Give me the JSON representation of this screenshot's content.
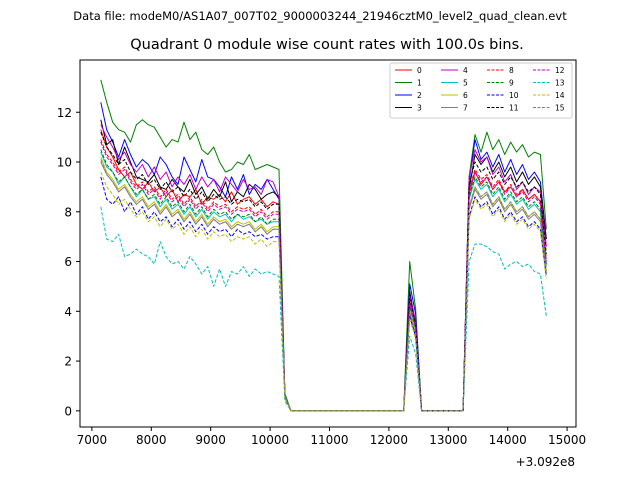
{
  "suptitle": "Data file: modeM0/AS1A07_007T02_9000003244_21946cztM0_level2_quad_clean.evt",
  "chart_data": {
    "type": "line",
    "title": "Quadrant 0 module wise count rates with 100.0s bins.",
    "xlabel": "",
    "ylabel": "",
    "x_offset_label": "+3.092e8",
    "xlim": [
      6800,
      15150
    ],
    "ylim": [
      -0.65,
      14.1
    ],
    "x_ticks": [
      7000,
      8000,
      9000,
      10000,
      11000,
      12000,
      13000,
      14000,
      15000
    ],
    "x_tick_labels": [
      "7000",
      "8000",
      "9000",
      "10000",
      "11000",
      "12000",
      "13000",
      "14000",
      "15000"
    ],
    "y_ticks": [
      0,
      2,
      4,
      6,
      8,
      10,
      12
    ],
    "y_tick_labels": [
      "0",
      "2",
      "4",
      "6",
      "8",
      "10",
      "12"
    ],
    "legend_position": "top-right",
    "x": [
      7150,
      7250,
      7350,
      7450,
      7550,
      7650,
      7750,
      7850,
      7950,
      8050,
      8150,
      8250,
      8350,
      8450,
      8550,
      8650,
      8750,
      8850,
      8950,
      9050,
      9150,
      9250,
      9350,
      9450,
      9550,
      9650,
      9750,
      9850,
      9950,
      10050,
      10150,
      10250,
      10350,
      10450,
      12250,
      12350,
      12450,
      12550,
      13250,
      13350,
      13450,
      13550,
      13650,
      13750,
      13850,
      13950,
      14050,
      14150,
      14250,
      14350,
      14450,
      14550,
      14650
    ],
    "series": [
      {
        "name": "0",
        "color": "#ff0000",
        "dash": "solid",
        "values": [
          11.3,
          10.6,
          10.2,
          9.7,
          9.4,
          9.6,
          9.1,
          8.9,
          9.2,
          8.8,
          9.0,
          8.6,
          8.9,
          8.4,
          8.7,
          8.6,
          8.9,
          8.3,
          8.6,
          8.5,
          8.7,
          8.4,
          8.8,
          8.3,
          8.5,
          8.6,
          8.3,
          8.5,
          8.2,
          8.4,
          8.3,
          0.6,
          0.0,
          0.0,
          0.0,
          4.6,
          3.6,
          0.0,
          0.0,
          8.7,
          9.6,
          9.1,
          9.4,
          8.9,
          9.2,
          8.8,
          9.0,
          8.6,
          8.9,
          8.5,
          8.7,
          8.4,
          6.6
        ]
      },
      {
        "name": "1",
        "color": "#008000",
        "dash": "solid",
        "values": [
          13.3,
          12.4,
          11.6,
          11.3,
          11.2,
          10.8,
          11.5,
          11.7,
          11.5,
          11.4,
          11.0,
          10.6,
          10.9,
          10.8,
          11.6,
          10.9,
          11.2,
          10.5,
          10.3,
          10.6,
          10.0,
          9.6,
          9.7,
          10.0,
          9.9,
          10.3,
          9.7,
          9.8,
          9.9,
          9.8,
          9.7,
          0.7,
          0.0,
          0.0,
          0.0,
          6.0,
          4.1,
          0.0,
          0.0,
          9.4,
          11.1,
          10.4,
          11.2,
          10.5,
          10.9,
          10.3,
          10.8,
          10.4,
          10.7,
          10.2,
          10.4,
          10.3,
          7.3
        ]
      },
      {
        "name": "2",
        "color": "#0000ff",
        "dash": "solid",
        "values": [
          12.4,
          11.3,
          10.8,
          10.2,
          10.9,
          10.3,
          9.8,
          10.1,
          9.9,
          9.5,
          10.2,
          9.9,
          9.4,
          9.1,
          10.2,
          9.7,
          9.2,
          10.1,
          9.4,
          9.3,
          9.0,
          8.6,
          9.4,
          8.9,
          9.5,
          8.7,
          9.1,
          8.9,
          9.3,
          8.9,
          8.5,
          0.6,
          0.0,
          0.0,
          0.0,
          5.1,
          3.9,
          0.0,
          0.0,
          9.2,
          10.9,
          10.1,
          10.4,
          9.8,
          10.3,
          9.6,
          10.1,
          9.5,
          9.9,
          9.3,
          9.6,
          9.2,
          6.9
        ]
      },
      {
        "name": "3",
        "color": "#000000",
        "dash": "solid",
        "values": [
          11.7,
          10.7,
          10.9,
          9.9,
          10.6,
          10.0,
          9.4,
          9.3,
          9.2,
          9.5,
          9.0,
          8.9,
          9.3,
          9.0,
          8.8,
          9.3,
          8.7,
          9.0,
          8.5,
          8.9,
          8.6,
          9.2,
          8.4,
          8.8,
          8.6,
          9.1,
          8.9,
          8.5,
          8.7,
          8.8,
          8.6,
          0.6,
          0.0,
          0.0,
          0.0,
          4.8,
          3.5,
          0.0,
          0.0,
          8.9,
          10.3,
          9.9,
          10.2,
          9.6,
          10.0,
          9.4,
          9.8,
          9.2,
          9.6,
          9.1,
          9.4,
          9.0,
          6.9
        ]
      },
      {
        "name": "4",
        "color": "#bf00bf",
        "dash": "solid",
        "values": [
          11.5,
          11.0,
          10.6,
          10.1,
          10.4,
          9.9,
          9.6,
          9.9,
          9.4,
          9.8,
          9.3,
          9.6,
          9.0,
          9.4,
          9.1,
          9.5,
          8.9,
          9.4,
          9.0,
          9.3,
          8.8,
          9.4,
          9.1,
          8.8,
          9.3,
          8.9,
          9.0,
          8.7,
          9.3,
          9.2,
          8.6,
          0.6,
          0.0,
          0.0,
          0.0,
          4.6,
          3.6,
          0.0,
          0.0,
          9.4,
          10.5,
          10.0,
          10.2,
          9.5,
          9.8,
          9.2,
          9.5,
          8.9,
          9.2,
          8.7,
          9.0,
          8.8,
          6.6
        ]
      },
      {
        "name": "5",
        "color": "#00bfbf",
        "dash": "solid",
        "values": [
          10.4,
          9.8,
          9.6,
          9.1,
          9.4,
          9.0,
          8.6,
          8.9,
          8.5,
          8.6,
          8.2,
          8.5,
          8.1,
          8.3,
          7.9,
          8.2,
          7.8,
          8.1,
          7.7,
          8.0,
          7.8,
          7.9,
          7.6,
          7.9,
          7.7,
          7.8,
          7.6,
          7.7,
          7.5,
          7.6,
          7.6,
          0.6,
          0.0,
          0.0,
          0.0,
          4.2,
          3.3,
          0.0,
          0.0,
          8.5,
          9.3,
          8.9,
          9.1,
          8.6,
          8.9,
          8.4,
          8.7,
          8.3,
          8.5,
          8.1,
          8.3,
          8.0,
          5.8
        ]
      },
      {
        "name": "6",
        "color": "#bfbf00",
        "dash": "solid",
        "values": [
          10.2,
          9.6,
          9.3,
          8.9,
          9.1,
          8.7,
          8.4,
          8.6,
          8.2,
          8.4,
          8.0,
          8.3,
          7.9,
          8.1,
          7.7,
          8.0,
          7.6,
          7.9,
          7.5,
          7.8,
          7.6,
          7.7,
          7.4,
          7.6,
          7.5,
          7.6,
          7.3,
          7.5,
          7.2,
          7.4,
          7.4,
          0.6,
          0.0,
          0.0,
          0.0,
          4.0,
          3.1,
          0.0,
          0.0,
          8.2,
          9.0,
          8.6,
          8.8,
          8.3,
          8.6,
          8.1,
          8.4,
          8.0,
          8.2,
          7.8,
          8.0,
          7.7,
          5.6
        ]
      },
      {
        "name": "7",
        "color": "#808080",
        "dash": "solid",
        "values": [
          10.0,
          9.5,
          9.2,
          8.8,
          9.0,
          8.6,
          8.3,
          8.5,
          8.1,
          8.3,
          7.9,
          8.2,
          7.8,
          8.0,
          7.6,
          7.9,
          7.5,
          7.8,
          7.4,
          7.7,
          7.5,
          7.6,
          7.3,
          7.5,
          7.4,
          7.5,
          7.2,
          7.4,
          7.1,
          7.3,
          7.3,
          0.6,
          0.0,
          0.0,
          0.0,
          3.9,
          3.0,
          0.0,
          0.0,
          8.1,
          8.9,
          8.5,
          8.7,
          8.2,
          8.5,
          8.0,
          8.3,
          7.9,
          8.1,
          7.7,
          7.9,
          7.6,
          5.5
        ]
      },
      {
        "name": "8",
        "color": "#ff0000",
        "dash": "dashed",
        "values": [
          10.9,
          10.3,
          10.0,
          9.6,
          9.8,
          9.3,
          9.0,
          9.2,
          8.8,
          9.0,
          8.6,
          8.9,
          8.5,
          8.7,
          8.3,
          8.6,
          8.2,
          8.5,
          8.1,
          8.4,
          8.2,
          8.3,
          8.0,
          8.2,
          8.1,
          8.2,
          7.9,
          8.1,
          7.8,
          8.0,
          8.0,
          0.6,
          0.0,
          0.0,
          0.0,
          4.4,
          3.4,
          0.0,
          0.0,
          8.9,
          9.7,
          9.3,
          9.5,
          9.0,
          9.3,
          8.8,
          9.1,
          8.7,
          8.9,
          8.5,
          8.7,
          8.4,
          6.1
        ]
      },
      {
        "name": "9",
        "color": "#008000",
        "dash": "dashed",
        "values": [
          10.5,
          9.9,
          9.6,
          9.2,
          9.4,
          9.0,
          8.7,
          8.9,
          8.5,
          8.7,
          8.3,
          8.6,
          8.2,
          8.4,
          8.0,
          8.3,
          7.9,
          8.2,
          7.8,
          8.1,
          7.9,
          8.0,
          7.7,
          7.9,
          7.8,
          7.9,
          7.6,
          7.8,
          7.5,
          7.7,
          7.7,
          0.6,
          0.0,
          0.0,
          0.0,
          4.2,
          3.3,
          0.0,
          0.0,
          8.6,
          9.4,
          9.0,
          9.2,
          8.7,
          9.0,
          8.5,
          8.8,
          8.4,
          8.6,
          8.2,
          8.4,
          8.1,
          5.9
        ]
      },
      {
        "name": "10",
        "color": "#0000ff",
        "dash": "dashed",
        "values": [
          9.4,
          8.5,
          8.3,
          8.6,
          8.0,
          8.4,
          7.9,
          8.2,
          7.7,
          8.0,
          7.6,
          7.8,
          7.4,
          7.7,
          7.3,
          7.6,
          7.2,
          7.5,
          7.1,
          7.4,
          7.2,
          7.3,
          7.0,
          7.3,
          7.1,
          7.2,
          7.0,
          7.1,
          6.9,
          7.0,
          7.0,
          0.5,
          0.0,
          0.0,
          0.0,
          3.8,
          3.0,
          0.0,
          0.0,
          7.8,
          8.6,
          8.2,
          8.4,
          7.9,
          8.2,
          7.7,
          8.0,
          7.6,
          7.8,
          7.4,
          7.6,
          7.3,
          5.4
        ]
      },
      {
        "name": "11",
        "color": "#000000",
        "dash": "dashed",
        "values": [
          11.2,
          10.6,
          10.3,
          9.9,
          10.1,
          9.6,
          9.3,
          9.5,
          9.1,
          9.3,
          8.9,
          9.2,
          8.8,
          9.0,
          8.6,
          8.9,
          8.5,
          8.8,
          8.4,
          8.7,
          8.5,
          8.6,
          8.3,
          8.5,
          8.4,
          8.5,
          8.2,
          8.4,
          8.1,
          8.3,
          8.3,
          0.6,
          0.0,
          0.0,
          0.0,
          4.5,
          3.5,
          0.0,
          0.0,
          9.1,
          10.0,
          9.6,
          9.8,
          9.3,
          9.6,
          9.1,
          9.4,
          9.0,
          9.2,
          8.8,
          9.0,
          8.7,
          6.3
        ]
      },
      {
        "name": "12",
        "color": "#bf00bf",
        "dash": "dashed",
        "values": [
          10.8,
          10.2,
          9.9,
          9.5,
          9.7,
          9.2,
          8.9,
          9.1,
          8.7,
          8.9,
          8.5,
          8.8,
          8.4,
          8.6,
          8.2,
          8.5,
          8.1,
          8.4,
          8.0,
          8.3,
          8.1,
          8.2,
          7.9,
          8.1,
          8.0,
          8.1,
          7.8,
          8.0,
          7.7,
          7.9,
          7.9,
          0.6,
          0.0,
          0.0,
          0.0,
          4.3,
          3.4,
          0.0,
          0.0,
          8.8,
          9.6,
          9.2,
          9.4,
          8.9,
          9.2,
          8.7,
          9.0,
          8.6,
          8.8,
          8.4,
          8.6,
          8.3,
          6.0
        ]
      },
      {
        "name": "13",
        "color": "#00bfbf",
        "dash": "dashed",
        "values": [
          8.2,
          6.9,
          6.8,
          7.1,
          6.2,
          6.3,
          6.5,
          6.3,
          6.2,
          5.9,
          6.8,
          6.2,
          5.9,
          6.0,
          5.7,
          6.2,
          5.9,
          5.5,
          5.8,
          5.0,
          5.7,
          5.0,
          5.6,
          5.5,
          5.8,
          5.4,
          5.7,
          5.5,
          5.6,
          5.5,
          5.4,
          0.4,
          0.0,
          0.0,
          0.0,
          3.0,
          2.3,
          0.0,
          0.0,
          6.0,
          6.7,
          6.7,
          6.6,
          6.4,
          6.3,
          5.7,
          5.9,
          6.0,
          5.8,
          5.9,
          5.6,
          5.5,
          3.8
        ]
      },
      {
        "name": "14",
        "color": "#bfbf00",
        "dash": "dashed",
        "values": [
          9.6,
          9.0,
          8.7,
          8.3,
          8.5,
          8.1,
          7.8,
          8.0,
          7.6,
          7.8,
          7.4,
          7.7,
          7.3,
          7.5,
          7.1,
          7.4,
          7.0,
          7.3,
          6.9,
          7.2,
          7.0,
          7.1,
          6.8,
          7.0,
          6.9,
          7.0,
          6.7,
          6.9,
          6.6,
          6.8,
          6.8,
          0.5,
          0.0,
          0.0,
          0.0,
          3.7,
          2.9,
          0.0,
          0.0,
          7.7,
          8.5,
          8.1,
          8.3,
          7.8,
          8.1,
          7.6,
          7.9,
          7.5,
          7.7,
          7.3,
          7.5,
          7.2,
          5.3
        ]
      },
      {
        "name": "15",
        "color": "#808080",
        "dash": "dashed",
        "values": [
          10.1,
          9.5,
          9.2,
          8.8,
          9.0,
          8.6,
          8.3,
          8.5,
          8.1,
          8.3,
          7.9,
          8.2,
          7.8,
          8.0,
          7.6,
          7.9,
          7.5,
          7.8,
          7.4,
          7.7,
          7.5,
          7.6,
          7.3,
          7.5,
          7.4,
          7.5,
          7.2,
          7.4,
          7.1,
          7.3,
          7.3,
          0.6,
          0.0,
          0.0,
          0.0,
          4.0,
          3.1,
          0.0,
          0.0,
          8.2,
          9.0,
          8.6,
          8.8,
          8.3,
          8.6,
          8.1,
          8.4,
          8.0,
          8.2,
          7.8,
          8.0,
          7.7,
          5.6
        ]
      }
    ]
  }
}
